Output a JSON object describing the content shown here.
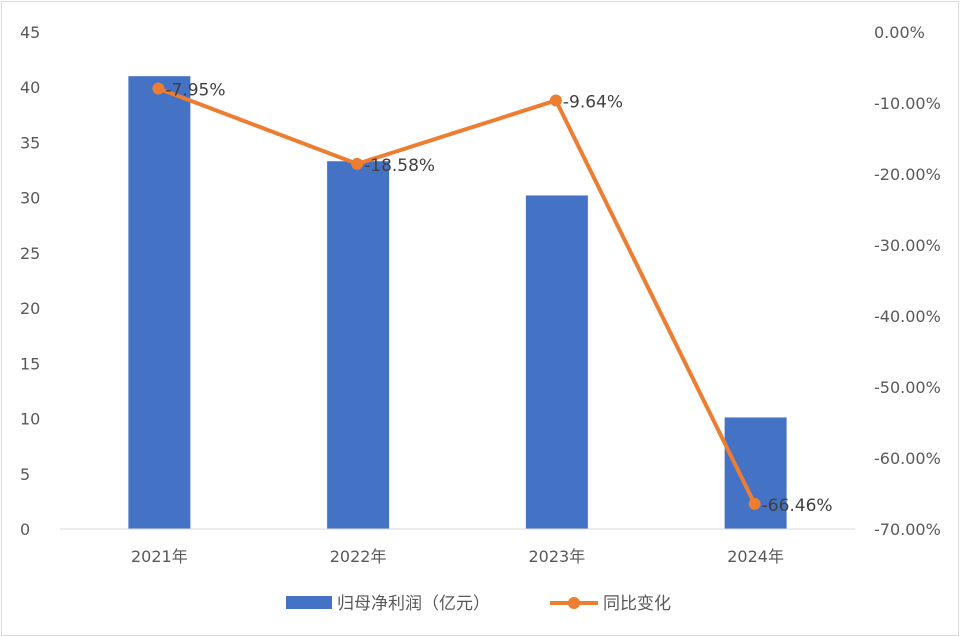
{
  "chart_data": {
    "type": "bar+line",
    "categories": [
      "2021年",
      "2022年",
      "2023年",
      "2024年"
    ],
    "series": [
      {
        "name": "归母净利润（亿元）",
        "type": "bar",
        "axis": "left",
        "color": "#4472C4",
        "values": [
          41.0,
          33.3,
          30.2,
          10.1
        ]
      },
      {
        "name": "同比变化",
        "type": "line",
        "axis": "right",
        "color": "#ED7D31",
        "values": [
          -7.95,
          -18.58,
          -9.64,
          -66.46
        ],
        "labels": [
          "-7.95%",
          "-18.58%",
          "-9.64%",
          "-66.46%"
        ]
      }
    ],
    "y_left": {
      "ylim": [
        0,
        45
      ],
      "ticks": [
        "0",
        "5",
        "10",
        "15",
        "20",
        "25",
        "30",
        "35",
        "40",
        "45"
      ]
    },
    "y_right": {
      "ylim": [
        -70,
        0
      ],
      "ticks": [
        "0.00%",
        "-10.00%",
        "-20.00%",
        "-30.00%",
        "-40.00%",
        "-50.00%",
        "-60.00%",
        "-70.00%"
      ]
    },
    "grid": false,
    "legend": "bottom"
  }
}
